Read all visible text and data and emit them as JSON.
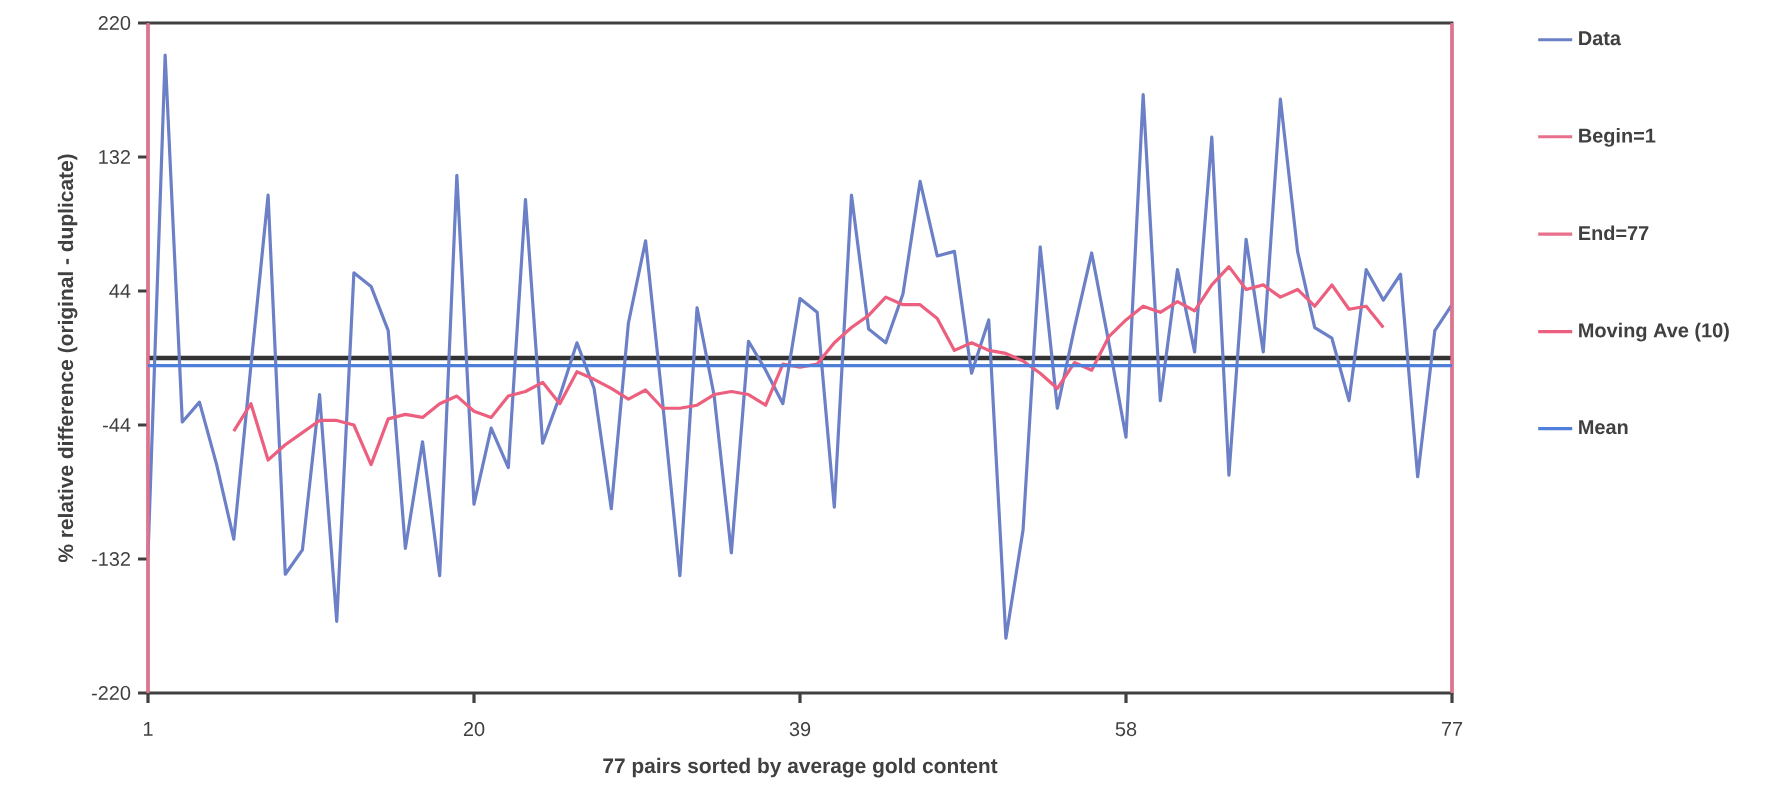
{
  "chart_data": {
    "type": "line",
    "xlabel": "77 pairs sorted by average gold content",
    "ylabel": "% relative difference (original - duplicate)",
    "x": [
      1,
      2,
      3,
      4,
      5,
      6,
      7,
      8,
      9,
      10,
      11,
      12,
      13,
      14,
      15,
      16,
      17,
      18,
      19,
      20,
      21,
      22,
      23,
      24,
      25,
      26,
      27,
      28,
      29,
      30,
      31,
      32,
      33,
      34,
      35,
      36,
      37,
      38,
      39,
      40,
      41,
      42,
      43,
      44,
      45,
      46,
      47,
      48,
      49,
      50,
      51,
      52,
      53,
      54,
      55,
      56,
      57,
      58,
      59,
      60,
      61,
      62,
      63,
      64,
      65,
      66,
      67,
      68,
      69,
      70,
      71,
      72,
      73,
      74,
      75,
      76,
      77
    ],
    "xlim": [
      1,
      77
    ],
    "xticks": [
      1,
      20,
      39,
      58,
      77
    ],
    "ylim": [
      -220,
      220
    ],
    "yticks": [
      -220,
      -132,
      -44,
      44,
      132,
      220
    ],
    "grid": false,
    "legend": "right",
    "marker": "none",
    "line_style": "solid",
    "ref_lines": [
      {
        "axis": "y",
        "value": 0,
        "color": "#333333"
      }
    ],
    "series": [
      {
        "name": "Data",
        "color": "#6b80c6",
        "values": [
          -130,
          199,
          -42,
          -29,
          -70,
          -119,
          -5,
          107,
          -142,
          -126,
          -24,
          -173,
          56,
          47,
          18,
          -125,
          -55,
          -143,
          120,
          -96,
          -46,
          -72,
          104,
          -56,
          -25,
          10,
          -20,
          -99,
          23,
          77,
          -30,
          -143,
          33,
          -25,
          -128,
          11,
          -8,
          -30,
          39,
          30,
          -98,
          107,
          19,
          10,
          42,
          116,
          67,
          70,
          -10,
          25,
          -184,
          -113,
          73,
          -33,
          20,
          69,
          10,
          -52,
          173,
          -28,
          58,
          4,
          145,
          -77,
          78,
          4,
          170,
          70,
          20,
          13,
          -28,
          58,
          38,
          55,
          -78,
          18,
          35
        ]
      },
      {
        "name": "Begin=1",
        "color": "#e8708c",
        "x": [
          1,
          1
        ],
        "values": [
          -220,
          220
        ]
      },
      {
        "name": "End=77",
        "color": "#e8708c",
        "x": [
          77,
          77
        ],
        "values": [
          -220,
          220
        ]
      },
      {
        "name": "Moving Ave (10)",
        "color": "#ec5f7e",
        "x": [
          6,
          7,
          8,
          9,
          10,
          11,
          12,
          13,
          14,
          15,
          16,
          17,
          18,
          19,
          20,
          21,
          22,
          23,
          24,
          25,
          26,
          27,
          28,
          29,
          30,
          31,
          32,
          33,
          34,
          35,
          36,
          37,
          38,
          39,
          40,
          41,
          42,
          43,
          44,
          45,
          46,
          47,
          48,
          49,
          50,
          51,
          52,
          53,
          54,
          55,
          56,
          57,
          58,
          59,
          60,
          61,
          62,
          63,
          64,
          65,
          66,
          67,
          68,
          69,
          70,
          71,
          72,
          73
        ],
        "values": [
          -48,
          -30,
          -67,
          -57,
          -49,
          -41,
          -41,
          -44,
          -70,
          -40,
          -37,
          -39,
          -30,
          -25,
          -35,
          -39,
          -25,
          -22,
          -16,
          -30,
          -9,
          -14,
          -20,
          -27,
          -21,
          -33,
          -33,
          -31,
          -24,
          -22,
          -24,
          -31,
          -4,
          -6,
          -4,
          10,
          20,
          28,
          40,
          35,
          35,
          26,
          5,
          10,
          5,
          3,
          -2,
          -10,
          -20,
          -3,
          -8,
          14,
          25,
          34,
          30,
          37,
          31,
          48,
          60,
          45,
          48,
          40,
          45,
          34,
          48,
          32,
          34,
          20
        ]
      },
      {
        "name": "Mean",
        "color": "#4f7fd8",
        "x": [
          1,
          77
        ],
        "values": [
          -5,
          -5
        ]
      }
    ]
  }
}
